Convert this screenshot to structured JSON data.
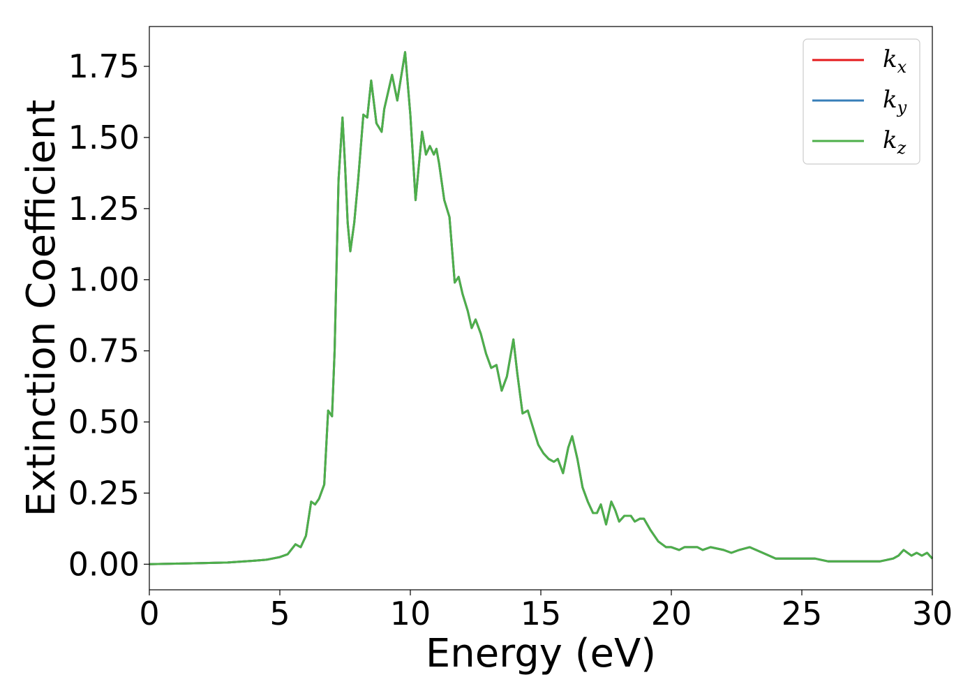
{
  "chart_data": {
    "type": "line",
    "xlabel": "Energy (eV)",
    "ylabel": "Extinction Coefficient",
    "xlim": [
      0,
      30
    ],
    "ylim": [
      -0.09,
      1.89
    ],
    "x_ticks": [
      "0",
      "5",
      "10",
      "15",
      "20",
      "25",
      "30"
    ],
    "y_ticks": [
      "0.00",
      "0.25",
      "0.50",
      "0.75",
      "1.00",
      "1.25",
      "1.50",
      "1.75"
    ],
    "legend_position": "top-right",
    "grid": false,
    "series": [
      {
        "name": "k_x",
        "label_base": "k",
        "label_sub": "x",
        "color": "#e41a1c"
      },
      {
        "name": "k_y",
        "label_base": "k",
        "label_sub": "y",
        "color": "#377eb8"
      },
      {
        "name": "k_z",
        "label_base": "k",
        "label_sub": "z",
        "color": "#4daf4a"
      }
    ],
    "x": [
      0,
      1,
      2,
      3,
      4,
      4.5,
      5,
      5.3,
      5.6,
      5.8,
      6.0,
      6.2,
      6.35,
      6.5,
      6.7,
      6.85,
      7.0,
      7.1,
      7.25,
      7.4,
      7.5,
      7.6,
      7.7,
      7.85,
      8.0,
      8.2,
      8.35,
      8.5,
      8.7,
      8.9,
      9.0,
      9.3,
      9.5,
      9.8,
      10.0,
      10.2,
      10.45,
      10.6,
      10.75,
      10.9,
      11.0,
      11.1,
      11.3,
      11.5,
      11.7,
      11.85,
      12.0,
      12.2,
      12.35,
      12.5,
      12.7,
      12.9,
      13.1,
      13.3,
      13.5,
      13.7,
      13.95,
      14.1,
      14.3,
      14.5,
      14.7,
      14.9,
      15.1,
      15.3,
      15.5,
      15.65,
      15.85,
      16.05,
      16.2,
      16.4,
      16.6,
      16.8,
      17.0,
      17.15,
      17.3,
      17.5,
      17.7,
      17.85,
      18.0,
      18.2,
      18.45,
      18.6,
      18.8,
      18.95,
      19.2,
      19.5,
      19.8,
      20.0,
      20.3,
      20.5,
      21.0,
      21.2,
      21.5,
      22.0,
      22.3,
      22.6,
      23.0,
      23.5,
      24.0,
      24.3,
      24.6,
      25.0,
      25.5,
      26.0,
      26.5,
      27.0,
      27.5,
      28.0,
      28.5,
      28.7,
      28.9,
      29.2,
      29.4,
      29.6,
      29.8,
      30.0
    ],
    "y": [
      0.0,
      0.002,
      0.004,
      0.006,
      0.012,
      0.016,
      0.025,
      0.035,
      0.07,
      0.06,
      0.1,
      0.22,
      0.21,
      0.23,
      0.28,
      0.54,
      0.52,
      0.75,
      1.35,
      1.57,
      1.4,
      1.2,
      1.1,
      1.2,
      1.35,
      1.58,
      1.57,
      1.7,
      1.55,
      1.52,
      1.6,
      1.72,
      1.63,
      1.8,
      1.58,
      1.28,
      1.52,
      1.44,
      1.47,
      1.44,
      1.46,
      1.41,
      1.28,
      1.22,
      0.99,
      1.01,
      0.95,
      0.89,
      0.83,
      0.86,
      0.81,
      0.74,
      0.69,
      0.7,
      0.61,
      0.66,
      0.79,
      0.67,
      0.53,
      0.54,
      0.48,
      0.42,
      0.39,
      0.37,
      0.36,
      0.37,
      0.32,
      0.41,
      0.45,
      0.37,
      0.27,
      0.22,
      0.18,
      0.18,
      0.21,
      0.14,
      0.22,
      0.19,
      0.15,
      0.17,
      0.17,
      0.15,
      0.16,
      0.16,
      0.12,
      0.08,
      0.06,
      0.06,
      0.05,
      0.06,
      0.06,
      0.05,
      0.06,
      0.05,
      0.04,
      0.05,
      0.06,
      0.04,
      0.02,
      0.02,
      0.02,
      0.02,
      0.02,
      0.01,
      0.01,
      0.01,
      0.01,
      0.01,
      0.02,
      0.03,
      0.05,
      0.03,
      0.04,
      0.03,
      0.04,
      0.02
    ]
  }
}
